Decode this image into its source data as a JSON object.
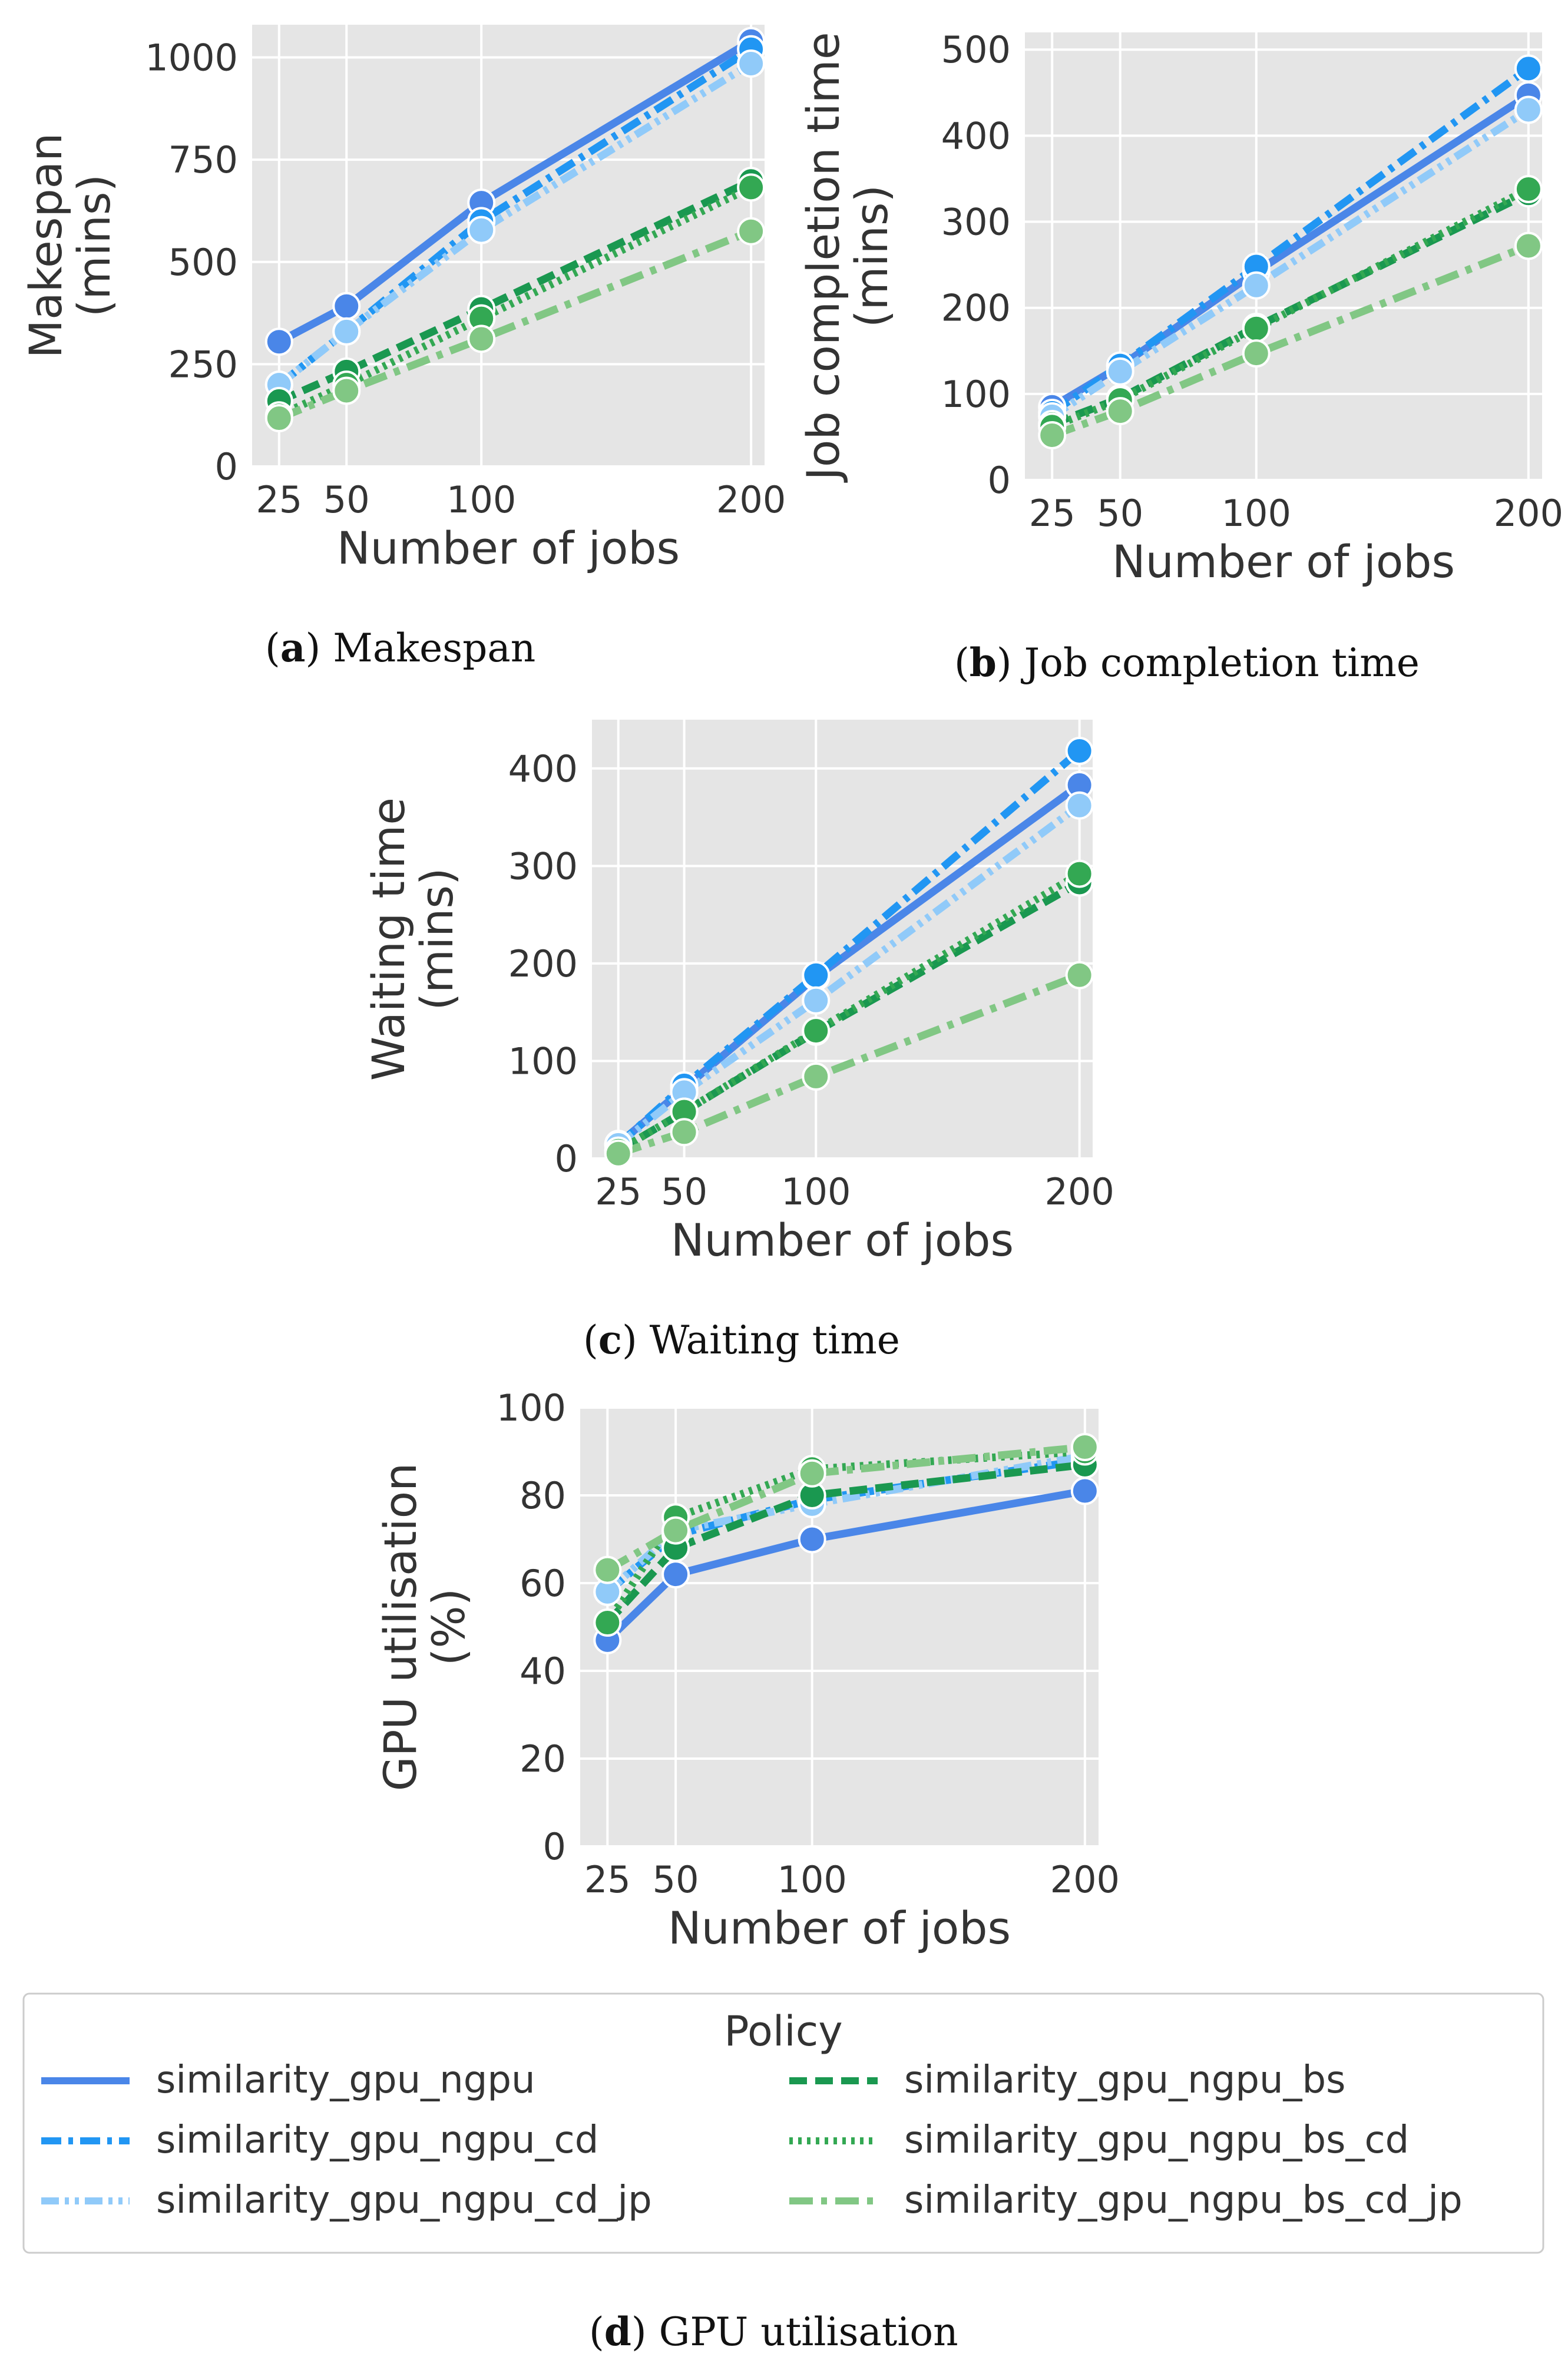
{
  "chart_data": [
    {
      "id": "a",
      "type": "line",
      "caption": {
        "letter": "a",
        "text": ") Makespan"
      },
      "xlabel": "Number of jobs",
      "ylabel": [
        "Makespan",
        "(mins)"
      ],
      "x": [
        25,
        50,
        100,
        200
      ],
      "xticks": [
        25,
        50,
        100,
        200
      ],
      "xlim": [
        15,
        205
      ],
      "ylim": [
        0,
        1080
      ],
      "yticks": [
        0,
        250,
        500,
        750,
        1000
      ],
      "grid": true,
      "series": [
        {
          "name": "similarity_gpu_ngpu",
          "values": [
            305,
            392,
            645,
            1040
          ]
        },
        {
          "name": "similarity_gpu_ngpu_cd",
          "values": [
            200,
            330,
            600,
            1020
          ]
        },
        {
          "name": "similarity_gpu_ngpu_cd_jp",
          "values": [
            200,
            330,
            578,
            985
          ]
        },
        {
          "name": "similarity_gpu_ngpu_bs",
          "values": [
            160,
            232,
            385,
            698
          ]
        },
        {
          "name": "similarity_gpu_ngpu_bs_cd",
          "values": [
            125,
            200,
            362,
            682
          ]
        },
        {
          "name": "similarity_gpu_ngpu_bs_cd_jp",
          "values": [
            118,
            185,
            312,
            575
          ]
        }
      ]
    },
    {
      "id": "b",
      "type": "line",
      "caption": {
        "letter": "b",
        "text": ") Job completion time"
      },
      "xlabel": "Number of jobs",
      "ylabel": [
        "Job completion time",
        "(mins)"
      ],
      "x": [
        25,
        50,
        100,
        200
      ],
      "xticks": [
        25,
        50,
        100,
        200
      ],
      "xlim": [
        15,
        205
      ],
      "ylim": [
        0,
        520
      ],
      "yticks": [
        0,
        100,
        200,
        300,
        400,
        500
      ],
      "grid": true,
      "series": [
        {
          "name": "similarity_gpu_ngpu",
          "values": [
            85,
            132,
            242,
            447
          ]
        },
        {
          "name": "similarity_gpu_ngpu_cd",
          "values": [
            78,
            133,
            248,
            478
          ]
        },
        {
          "name": "similarity_gpu_ngpu_cd_jp",
          "values": [
            74,
            126,
            226,
            430
          ]
        },
        {
          "name": "similarity_gpu_ngpu_bs",
          "values": [
            65,
            95,
            178,
            333
          ]
        },
        {
          "name": "similarity_gpu_ngpu_bs_cd",
          "values": [
            62,
            93,
            176,
            338
          ]
        },
        {
          "name": "similarity_gpu_ngpu_bs_cd_jp",
          "values": [
            52,
            80,
            147,
            272
          ]
        }
      ]
    },
    {
      "id": "c",
      "type": "line",
      "caption": {
        "letter": "c",
        "text": ") Waiting time"
      },
      "xlabel": "Number of jobs",
      "ylabel": [
        "Waiting time",
        "(mins)"
      ],
      "x": [
        25,
        50,
        100,
        200
      ],
      "xticks": [
        25,
        50,
        100,
        200
      ],
      "xlim": [
        15,
        205
      ],
      "ylim": [
        0,
        450
      ],
      "yticks": [
        0,
        100,
        200,
        300,
        400
      ],
      "grid": true,
      "series": [
        {
          "name": "similarity_gpu_ngpu",
          "values": [
            15,
            72,
            186,
            383
          ]
        },
        {
          "name": "similarity_gpu_ngpu_cd",
          "values": [
            14,
            75,
            188,
            418
          ]
        },
        {
          "name": "similarity_gpu_ngpu_cd_jp",
          "values": [
            14,
            68,
            162,
            362
          ]
        },
        {
          "name": "similarity_gpu_ngpu_bs",
          "values": [
            8,
            48,
            130,
            283
          ]
        },
        {
          "name": "similarity_gpu_ngpu_bs_cd",
          "values": [
            8,
            48,
            131,
            292
          ]
        },
        {
          "name": "similarity_gpu_ngpu_bs_cd_jp",
          "values": [
            5,
            27,
            84,
            188
          ]
        }
      ]
    },
    {
      "id": "d",
      "type": "line",
      "caption": {
        "letter": "d",
        "text": ") GPU utilisation"
      },
      "xlabel": "Number of jobs",
      "ylabel": [
        "GPU utilisation",
        "(%)"
      ],
      "x": [
        25,
        50,
        100,
        200
      ],
      "xticks": [
        25,
        50,
        100,
        200
      ],
      "xlim": [
        15,
        205
      ],
      "ylim": [
        0,
        100
      ],
      "yticks": [
        0,
        20,
        40,
        60,
        80,
        100
      ],
      "grid": true,
      "series": [
        {
          "name": "similarity_gpu_ngpu",
          "values": [
            47,
            62,
            70,
            81
          ]
        },
        {
          "name": "similarity_gpu_ngpu_cd",
          "values": [
            58,
            71,
            79,
            88
          ]
        },
        {
          "name": "similarity_gpu_ngpu_cd_jp",
          "values": [
            58,
            72,
            78,
            89
          ]
        },
        {
          "name": "similarity_gpu_ngpu_bs",
          "values": [
            51,
            68,
            80,
            87
          ]
        },
        {
          "name": "similarity_gpu_ngpu_bs_cd",
          "values": [
            51,
            75,
            86,
            90
          ]
        },
        {
          "name": "similarity_gpu_ngpu_bs_cd_jp",
          "values": [
            63,
            72,
            85,
            91
          ]
        }
      ]
    }
  ],
  "legend": {
    "title": "Policy",
    "placement": "bottom",
    "entries": [
      {
        "name": "similarity_gpu_ngpu",
        "color": "#4a86e8",
        "dash": "solid"
      },
      {
        "name": "similarity_gpu_ngpu_cd",
        "color": "#2196f3",
        "dash": "dashdot"
      },
      {
        "name": "similarity_gpu_ngpu_cd_jp",
        "color": "#90caf9",
        "dash": "dashdotdot"
      },
      {
        "name": "similarity_gpu_ngpu_bs",
        "color": "#1a9850",
        "dash": "dashed"
      },
      {
        "name": "similarity_gpu_ngpu_bs_cd",
        "color": "#33a853",
        "dash": "dotted"
      },
      {
        "name": "similarity_gpu_ngpu_bs_cd_jp",
        "color": "#81c784",
        "dash": "longdashdot"
      }
    ]
  }
}
